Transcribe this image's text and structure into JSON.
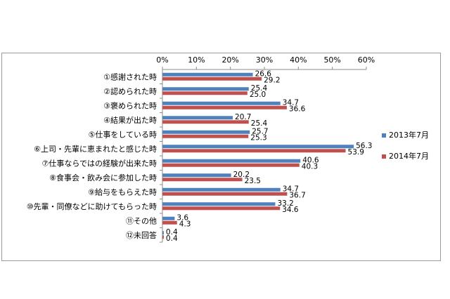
{
  "chart_data": {
    "type": "bar",
    "orientation": "horizontal",
    "categories": [
      "①感謝された時",
      "②認められた時",
      "③褒められた時",
      "④結果が出た時",
      "⑤仕事をしている時",
      "⑥上司・先輩に恵まれたと感じた時",
      "⑦仕事ならではの経験が出来た時",
      "⑧食事会・飲み会に参加した時",
      "⑨給与をもらえた時",
      "⑩先輩・同僚などに助けてもらった時",
      "⑪その他",
      "⑫未回答"
    ],
    "series": [
      {
        "name": "2013年7月",
        "color": "#4f81bd",
        "values": [
          26.6,
          25.4,
          34.7,
          20.7,
          25.7,
          56.3,
          40.6,
          20.2,
          34.7,
          33.2,
          3.6,
          0.4
        ],
        "labels": [
          "26.6",
          "25.4",
          "34.7",
          "20.7",
          "25.7",
          "56.3",
          "40.6",
          "20.2",
          "34.7",
          "33.2",
          "3.6",
          "0.4"
        ]
      },
      {
        "name": "2014年7月",
        "color": "#c0504d",
        "values": [
          29.2,
          25.0,
          36.6,
          25.4,
          25.3,
          53.9,
          40.3,
          23.5,
          36.7,
          34.6,
          4.3,
          0.4
        ],
        "labels": [
          "29.2",
          "25.0",
          "36.6",
          "25.4",
          "25.3",
          "53.9",
          "40.3",
          "23.5",
          "36.7",
          "34.6",
          "4.3",
          "0.4"
        ]
      }
    ],
    "xlim": [
      0,
      60
    ],
    "ticks": [
      0,
      10,
      20,
      30,
      40,
      50,
      60
    ],
    "tick_labels": [
      "0%",
      "10%",
      "20%",
      "30%",
      "40%",
      "50%",
      "60%"
    ],
    "grid": false,
    "axis_position": "top",
    "legend_position": "right"
  }
}
